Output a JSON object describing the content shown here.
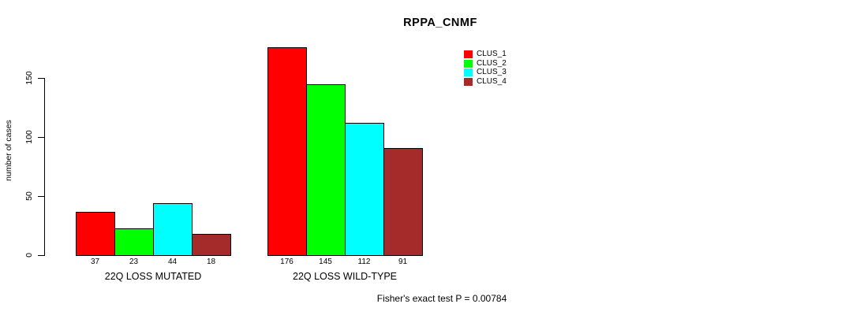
{
  "chart_data": {
    "type": "bar",
    "title": "RPPA_CNMF",
    "ylabel": "number of cases",
    "xlabel": "",
    "yticks": [
      0,
      50,
      100,
      150
    ],
    "ylim": [
      0,
      176
    ],
    "grid": false,
    "legend_position": "top-right",
    "categories": [
      "22Q LOSS MUTATED",
      "22Q LOSS WILD-TYPE"
    ],
    "series": [
      {
        "name": "CLUS_1",
        "color": "#FF0000",
        "values": [
          37,
          176
        ]
      },
      {
        "name": "CLUS_2",
        "color": "#00FF00",
        "values": [
          23,
          145
        ]
      },
      {
        "name": "CLUS_3",
        "color": "#00FFFF",
        "values": [
          44,
          112
        ]
      },
      {
        "name": "CLUS_4",
        "color": "#A52A2A",
        "values": [
          18,
          91
        ]
      }
    ],
    "bar_value_labels": [
      [
        37,
        23,
        44,
        18
      ],
      [
        176,
        145,
        112,
        91
      ]
    ],
    "footnote": "Fisher's exact test P = 0.00784",
    "colors": {
      "background": "#FFFFFF",
      "bar_border": "#000000",
      "text": "#000000"
    }
  }
}
